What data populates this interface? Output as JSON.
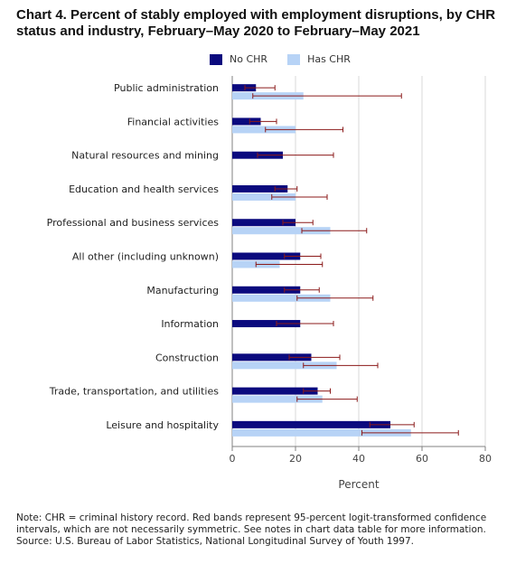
{
  "title_line1": "Chart 4. Percent of stably employed with employment disruptions, by CHR",
  "title_line2": "status and industry, February–May 2020 to February–May 2021",
  "legend": {
    "no_chr": "No CHR",
    "has_chr": "Has CHR"
  },
  "colors": {
    "no_chr": "#0b0a7e",
    "has_chr": "#b7d3f6",
    "ci": "#8b1a1a",
    "grid": "#d9d9d9",
    "axis": "#808080"
  },
  "note_lines": [
    "Note: CHR = criminal history record. Red bands represent 95-percent logit-transformed confidence",
    "intervals, which are not necessarily symmetric. See notes in chart data table for more information.",
    "Source: U.S. Bureau of Labor Statistics, National Longitudinal Survey of Youth 1997."
  ],
  "chart_data": {
    "type": "bar",
    "orientation": "horizontal",
    "title": "Chart 4. Percent of stably employed with employment disruptions, by CHR status and industry, February–May 2020 to February–May 2021",
    "xlabel": "Percent",
    "ylabel": "",
    "xlim": [
      0,
      80
    ],
    "xticks": [
      0,
      20,
      40,
      60,
      80
    ],
    "grid": true,
    "legend_position": "top-center",
    "categories": [
      "Public administration",
      "Financial activities",
      "Natural resources and mining",
      "Education and health services",
      "Professional and business services",
      "All other (including unknown)",
      "Manufacturing",
      "Information",
      "Construction",
      "Trade, transportation, and utilities",
      "Leisure and hospitality"
    ],
    "series": [
      {
        "name": "No CHR",
        "values": [
          7.5,
          9,
          16,
          17.5,
          20,
          21.5,
          21.5,
          21.5,
          25,
          27,
          50
        ],
        "ci_low": [
          4,
          5.5,
          8,
          13.5,
          16,
          16.5,
          16.5,
          14,
          18,
          22.5,
          43.5
        ],
        "ci_high": [
          13.5,
          14,
          32,
          20.5,
          25.5,
          28,
          27.5,
          32,
          34,
          31,
          57.5
        ]
      },
      {
        "name": "Has CHR",
        "values": [
          22.5,
          20,
          null,
          20,
          31,
          15,
          31,
          null,
          33,
          28.5,
          56.5
        ],
        "ci_low": [
          6.5,
          10.5,
          null,
          12.5,
          22,
          7.5,
          20.5,
          null,
          22.5,
          20.5,
          41
        ],
        "ci_high": [
          53.5,
          35,
          null,
          30,
          42.5,
          28.5,
          44.5,
          null,
          46,
          39.5,
          71.5
        ]
      }
    ]
  }
}
